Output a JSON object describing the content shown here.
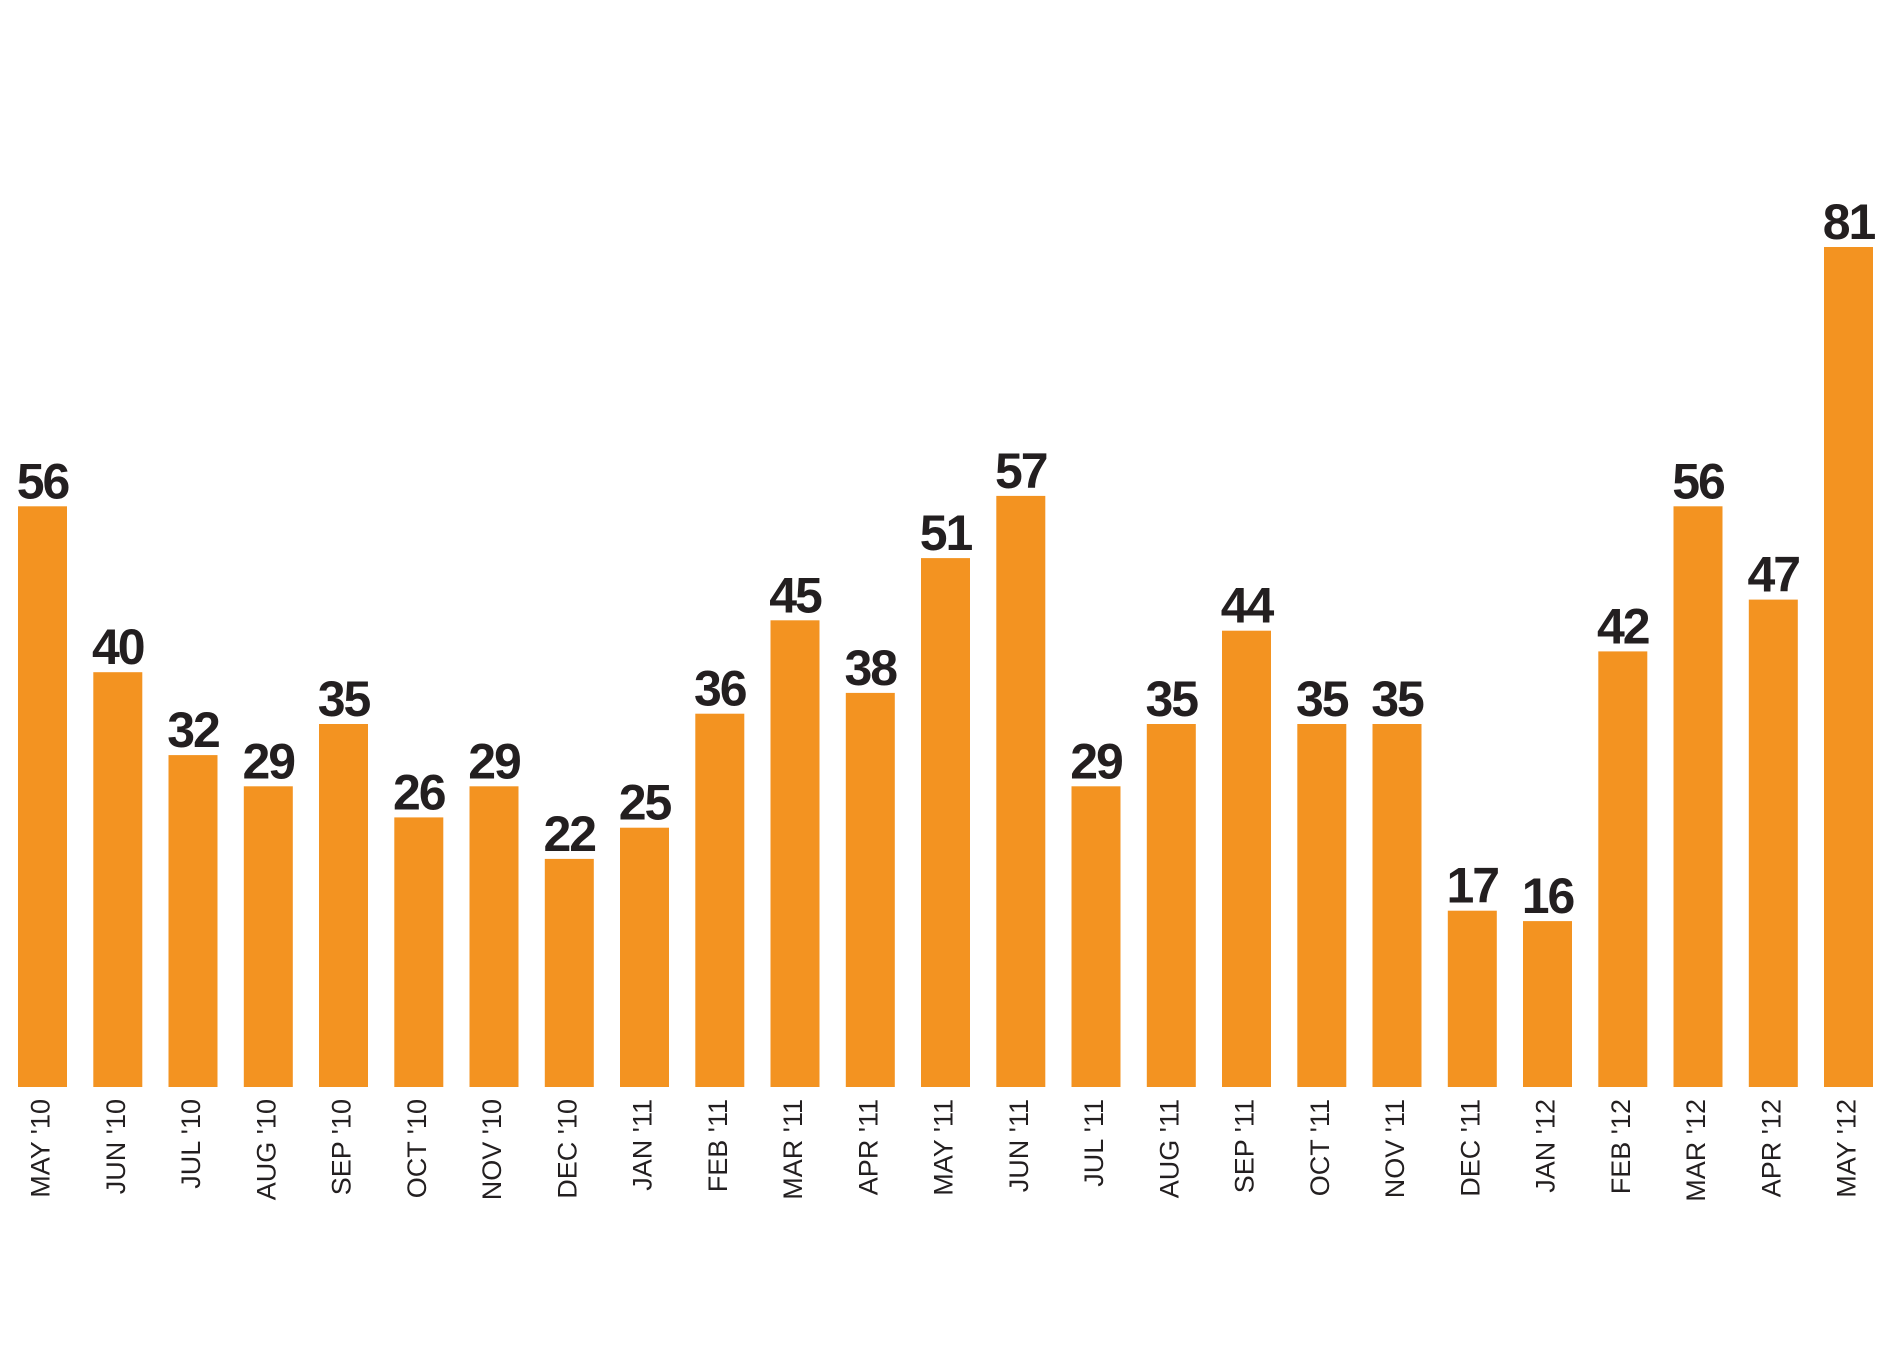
{
  "chart_data": {
    "type": "bar",
    "title": "",
    "xlabel": "",
    "ylabel": "",
    "categories": [
      "MAY '10",
      "JUN '10",
      "JUL '10",
      "AUG '10",
      "SEP '10",
      "OCT '10",
      "NOV '10",
      "DEC '10",
      "JAN '11",
      "FEB '11",
      "MAR '11",
      "APR '11",
      "MAY '11",
      "JUN '11",
      "JUL '11",
      "AUG '11",
      "SEP '11",
      "OCT '11",
      "NOV '11",
      "DEC '11",
      "JAN '12",
      "FEB '12",
      "MAR '12",
      "APR '12",
      "MAY '12"
    ],
    "values": [
      56,
      40,
      32,
      29,
      35,
      26,
      29,
      22,
      25,
      36,
      45,
      38,
      51,
      57,
      29,
      35,
      44,
      35,
      35,
      17,
      16,
      42,
      56,
      47,
      81
    ],
    "ylim": [
      0,
      81
    ],
    "grid": false,
    "legend": "none",
    "colors": {
      "bar": "#f39321",
      "value_label": "#231f20",
      "tick_label": "#231f20"
    }
  }
}
